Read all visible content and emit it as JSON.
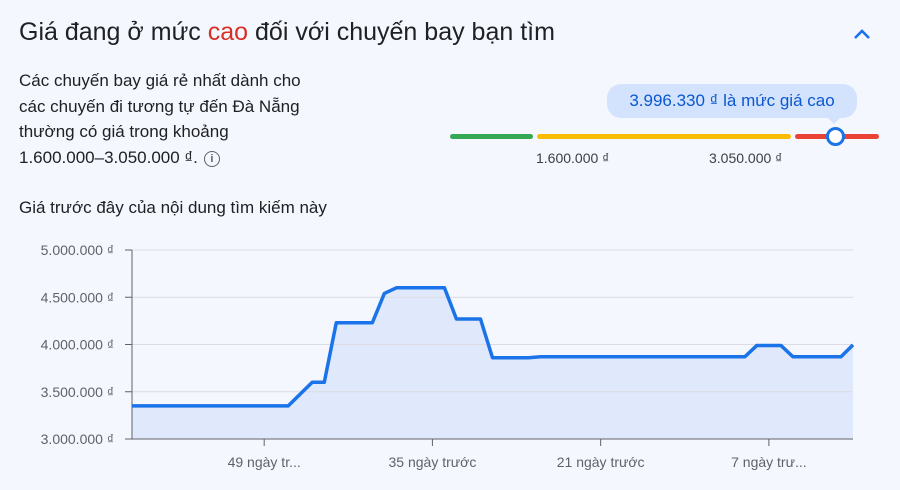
{
  "header": {
    "title_before": "Giá đang ở mức ",
    "title_highlight": "cao",
    "title_after": " đối với chuyến bay bạn tìm",
    "highlight_color": "#d93025",
    "collapse_icon": "chevron-up-icon"
  },
  "summary": {
    "line1": "Các chuyến bay giá rẻ nhất dành cho",
    "line2": "các chuyến đi tương tự đến Đà Nẵng",
    "line3": "thường có giá trong khoảng",
    "line4": "1.600.000–3.050.000 ₫.",
    "info_icon": "info-icon"
  },
  "price_range": {
    "current_label": "3.996.330 ₫ là mức giá cao",
    "current_value": 3996330,
    "low_bound_label": "1.600.000 ₫",
    "high_bound_label": "3.050.000 ₫",
    "colors": {
      "low": "#34a853",
      "typical": "#fbbc04",
      "high": "#ea4335",
      "marker": "#1a73e8"
    }
  },
  "history": {
    "title": "Giá trước đây của nội dung tìm kiếm này"
  },
  "chart_data": {
    "type": "area",
    "title": "",
    "xlabel": "",
    "ylabel": "",
    "x_unit": "days before today",
    "xlim": [
      60,
      0
    ],
    "ylim": [
      3000000,
      5000000
    ],
    "y_ticks": [
      {
        "value": 5000000,
        "label": "5.000.000 ₫"
      },
      {
        "value": 4500000,
        "label": "4.500.000 ₫"
      },
      {
        "value": 4000000,
        "label": "4.000.000 ₫"
      },
      {
        "value": 3500000,
        "label": "3.500.000 ₫"
      },
      {
        "value": 3000000,
        "label": "3.000.000 ₫"
      }
    ],
    "x_ticks": [
      {
        "value": 49,
        "label": "49 ngày tr..."
      },
      {
        "value": 35,
        "label": "35 ngày trước"
      },
      {
        "value": 21,
        "label": "21 ngày trước"
      },
      {
        "value": 7,
        "label": "7 ngày trư..."
      }
    ],
    "grid": true,
    "line_color": "#1a73e8",
    "fill_color": "#e0e8fb",
    "points": [
      [
        60,
        3350000
      ],
      [
        47,
        3350000
      ],
      [
        45,
        3600000
      ],
      [
        44,
        3600000
      ],
      [
        43,
        4230000
      ],
      [
        40,
        4230000
      ],
      [
        39,
        4540000
      ],
      [
        38,
        4600000
      ],
      [
        34,
        4600000
      ],
      [
        33,
        4270000
      ],
      [
        31,
        4270000
      ],
      [
        30,
        3860000
      ],
      [
        27,
        3860000
      ],
      [
        26,
        3870000
      ],
      [
        9,
        3870000
      ],
      [
        8,
        3990000
      ],
      [
        6,
        3990000
      ],
      [
        5,
        3870000
      ],
      [
        1,
        3870000
      ],
      [
        0,
        3996330
      ]
    ]
  }
}
